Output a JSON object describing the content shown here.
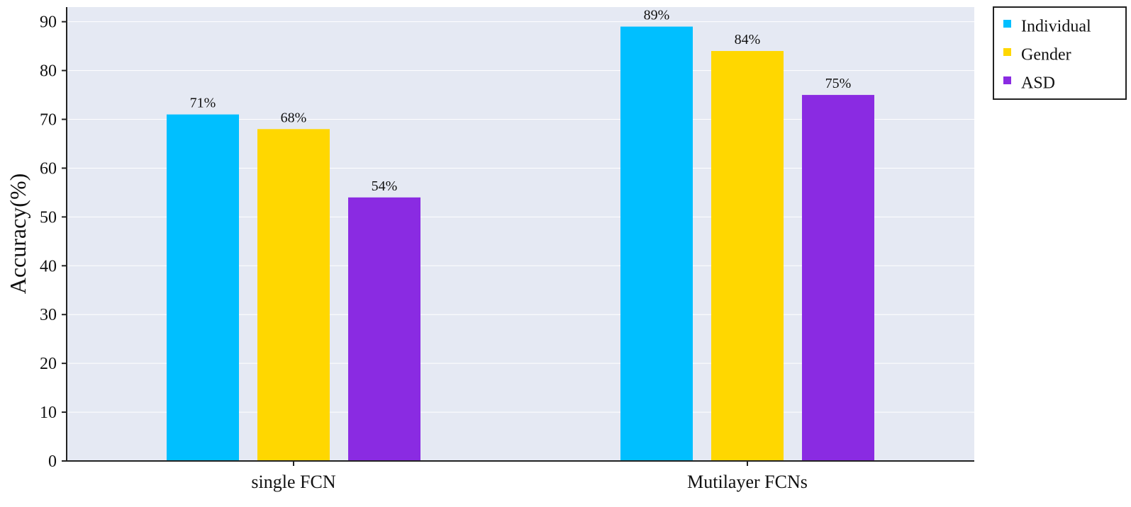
{
  "chart_data": {
    "type": "bar",
    "title": "",
    "xlabel": "",
    "ylabel": "Accuracy(%)",
    "ylim": [
      0,
      93
    ],
    "yticks": [
      0,
      10,
      20,
      30,
      40,
      50,
      60,
      70,
      80,
      90
    ],
    "grid": true,
    "legend_position": "top-right outside",
    "categories": [
      "single FCN",
      "Mutilayer FCNs"
    ],
    "series": [
      {
        "name": "Individual",
        "color": "#00BFFF",
        "values": [
          71,
          89
        ],
        "labels": [
          "71%",
          "89%"
        ]
      },
      {
        "name": "Gender",
        "color": "#FFD700",
        "values": [
          68,
          84
        ],
        "labels": [
          "68%",
          "84%"
        ]
      },
      {
        "name": "ASD",
        "color": "#8A2BE2",
        "values": [
          54,
          75
        ],
        "labels": [
          "54%",
          "75%"
        ]
      }
    ],
    "colors": {
      "plot_background": "#E5E9F3",
      "grid": "#FFFFFF",
      "axis": "#222222"
    }
  }
}
